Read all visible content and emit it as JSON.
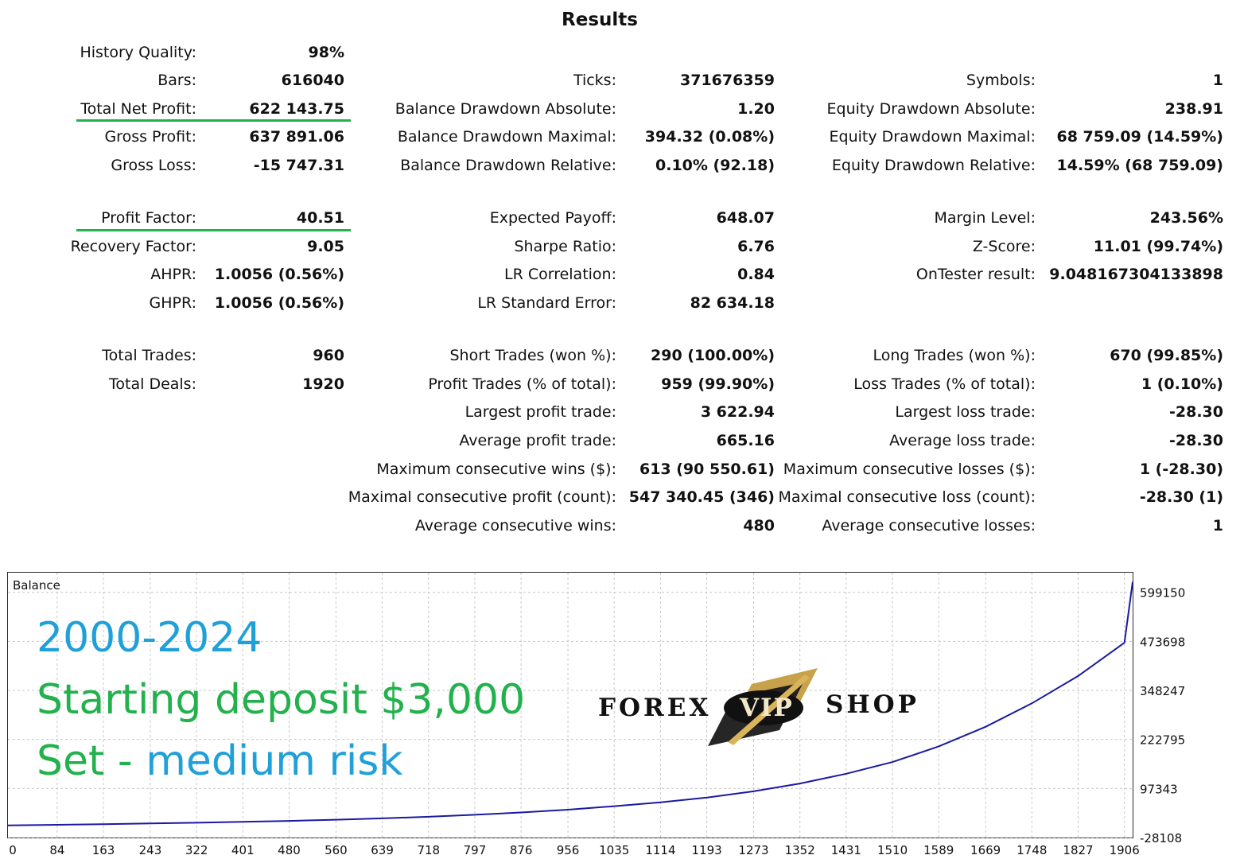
{
  "report": {
    "title": "Results",
    "rows": [
      {
        "y": 66,
        "cells": [
          [
            "History Quality:",
            "98%"
          ],
          null,
          null
        ]
      },
      {
        "y": 101,
        "cells": [
          [
            "Bars:",
            "616040"
          ],
          [
            "Ticks:",
            "371676359"
          ],
          [
            "Symbols:",
            "1"
          ]
        ]
      },
      {
        "y": 137,
        "cells": [
          [
            "Total Net Profit:",
            "622 143.75"
          ],
          [
            "Balance Drawdown Absolute:",
            "1.20"
          ],
          [
            "Equity Drawdown Absolute:",
            "238.91"
          ]
        ]
      },
      {
        "y": 172,
        "cells": [
          [
            "Gross Profit:",
            "637 891.06"
          ],
          [
            "Balance Drawdown Maximal:",
            "394.32 (0.08%)"
          ],
          [
            "Equity Drawdown Maximal:",
            "68 759.09 (14.59%)"
          ]
        ]
      },
      {
        "y": 208,
        "cells": [
          [
            "Gross Loss:",
            "-15 747.31"
          ],
          [
            "Balance Drawdown Relative:",
            "0.10% (92.18)"
          ],
          [
            "Equity Drawdown Relative:",
            "14.59% (68 759.09)"
          ]
        ]
      },
      {
        "y": 274,
        "cells": [
          [
            "Profit Factor:",
            "40.51"
          ],
          [
            "Expected Payoff:",
            "648.07"
          ],
          [
            "Margin Level:",
            "243.56%"
          ]
        ]
      },
      {
        "y": 310,
        "cells": [
          [
            "Recovery Factor:",
            "9.05"
          ],
          [
            "Sharpe Ratio:",
            "6.76"
          ],
          [
            "Z-Score:",
            "11.01 (99.74%)"
          ]
        ]
      },
      {
        "y": 345,
        "cells": [
          [
            "AHPR:",
            "1.0056 (0.56%)"
          ],
          [
            "LR Correlation:",
            "0.84"
          ],
          [
            "OnTester result:",
            "9.048167304133898"
          ]
        ]
      },
      {
        "y": 381,
        "cells": [
          [
            "GHPR:",
            "1.0056 (0.56%)"
          ],
          [
            "LR Standard Error:",
            "82 634.18"
          ],
          null
        ]
      },
      {
        "y": 447,
        "cells": [
          [
            "Total Trades:",
            "960"
          ],
          [
            "Short Trades (won %):",
            "290 (100.00%)"
          ],
          [
            "Long Trades (won %):",
            "670 (99.85%)"
          ]
        ]
      },
      {
        "y": 483,
        "cells": [
          [
            "Total Deals:",
            "1920"
          ],
          [
            "Profit Trades (% of total):",
            "959 (99.90%)"
          ],
          [
            "Loss Trades (% of total):",
            "1 (0.10%)"
          ]
        ]
      },
      {
        "y": 518,
        "cells": [
          null,
          [
            "Largest profit trade:",
            "3 622.94"
          ],
          [
            "Largest loss trade:",
            "-28.30"
          ]
        ]
      },
      {
        "y": 554,
        "cells": [
          null,
          [
            "Average profit trade:",
            "665.16"
          ],
          [
            "Average loss trade:",
            "-28.30"
          ]
        ]
      },
      {
        "y": 590,
        "cells": [
          null,
          [
            "Maximum consecutive wins ($):",
            "613 (90 550.61)"
          ],
          [
            "Maximum consecutive losses ($):",
            "1 (-28.30)"
          ]
        ]
      },
      {
        "y": 625,
        "cells": [
          null,
          [
            "Maximal consecutive profit (count):",
            "547 340.45 (346)"
          ],
          [
            "Maximal consecutive loss (count):",
            "-28.30 (1)"
          ]
        ]
      },
      {
        "y": 661,
        "cells": [
          null,
          [
            "Average consecutive wins:",
            "480"
          ],
          [
            "Average consecutive losses:",
            "1"
          ]
        ]
      }
    ]
  },
  "overlay": {
    "line1": "2000-2024",
    "line2": "Starting deposit $3,000",
    "line3a": "Set - ",
    "line3b": "medium risk"
  },
  "logo": {
    "left_word": "FOREX",
    "center_word": "VIP",
    "right_word": "SHOP"
  },
  "colors": {
    "accent_green": "#22b14c",
    "accent_blue": "#1fa0d8",
    "line_color": "#1a1aa0",
    "gold": "#c8a24a"
  },
  "chart_data": {
    "type": "line",
    "title": "Balance",
    "xlabel": "",
    "ylabel": "",
    "x_ticks": [
      0,
      84,
      163,
      243,
      322,
      401,
      480,
      560,
      639,
      718,
      797,
      876,
      956,
      1035,
      1114,
      1193,
      1273,
      1352,
      1431,
      1510,
      1589,
      1669,
      1748,
      1827,
      1906
    ],
    "y_ticks": [
      -28108,
      97343,
      222795,
      348247,
      473698,
      599150
    ],
    "xlim": [
      0,
      1920
    ],
    "ylim": [
      -28108,
      649300
    ],
    "grid": true,
    "series": [
      {
        "name": "Balance",
        "x": [
          0,
          84,
          163,
          243,
          322,
          401,
          480,
          560,
          639,
          718,
          797,
          876,
          956,
          1035,
          1114,
          1193,
          1273,
          1352,
          1431,
          1510,
          1589,
          1669,
          1748,
          1827,
          1906,
          1920
        ],
        "values": [
          3000,
          4500,
          6000,
          7800,
          9800,
          12000,
          14500,
          17500,
          21000,
          25000,
          30000,
          36000,
          43000,
          52000,
          62000,
          74000,
          90000,
          110000,
          135000,
          165000,
          205000,
          255000,
          315000,
          385000,
          470000,
          625000
        ]
      }
    ]
  }
}
